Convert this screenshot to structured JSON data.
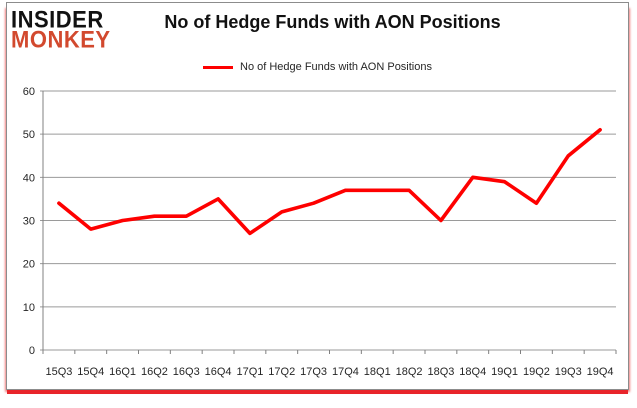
{
  "logo": {
    "line1": "INSIDER",
    "line2": "MONKEY"
  },
  "header": {
    "title": "No of Hedge Funds with AON Positions"
  },
  "legend": {
    "label": "No of Hedge Funds with AON Positions"
  },
  "chart_data": {
    "type": "line",
    "title": "No of Hedge Funds with AON Positions",
    "categories": [
      "15Q3",
      "15Q4",
      "16Q1",
      "16Q2",
      "16Q3",
      "16Q4",
      "17Q1",
      "17Q2",
      "17Q3",
      "17Q4",
      "18Q1",
      "18Q2",
      "18Q3",
      "18Q4",
      "19Q1",
      "19Q2",
      "19Q3",
      "19Q4"
    ],
    "series": [
      {
        "name": "No of Hedge Funds with AON Positions",
        "color": "#fe0000",
        "values": [
          34,
          28,
          30,
          31,
          31,
          35,
          27,
          32,
          34,
          37,
          37,
          37,
          30,
          40,
          39,
          34,
          45,
          51
        ]
      }
    ],
    "xlabel": "",
    "ylabel": "",
    "ylim": [
      0,
      60
    ],
    "y_ticks": [
      0,
      10,
      20,
      30,
      40,
      50,
      60
    ],
    "grid": true,
    "legend_position": "top-center"
  },
  "colors": {
    "line": "#fe0000",
    "logo_black": "#111111",
    "logo_red": "#d2492e",
    "grid": "#9a9a9a",
    "axis": "#808080",
    "text": "#262626",
    "frame_border": "#8c8c8c",
    "shadow_red": "#e8242a"
  }
}
